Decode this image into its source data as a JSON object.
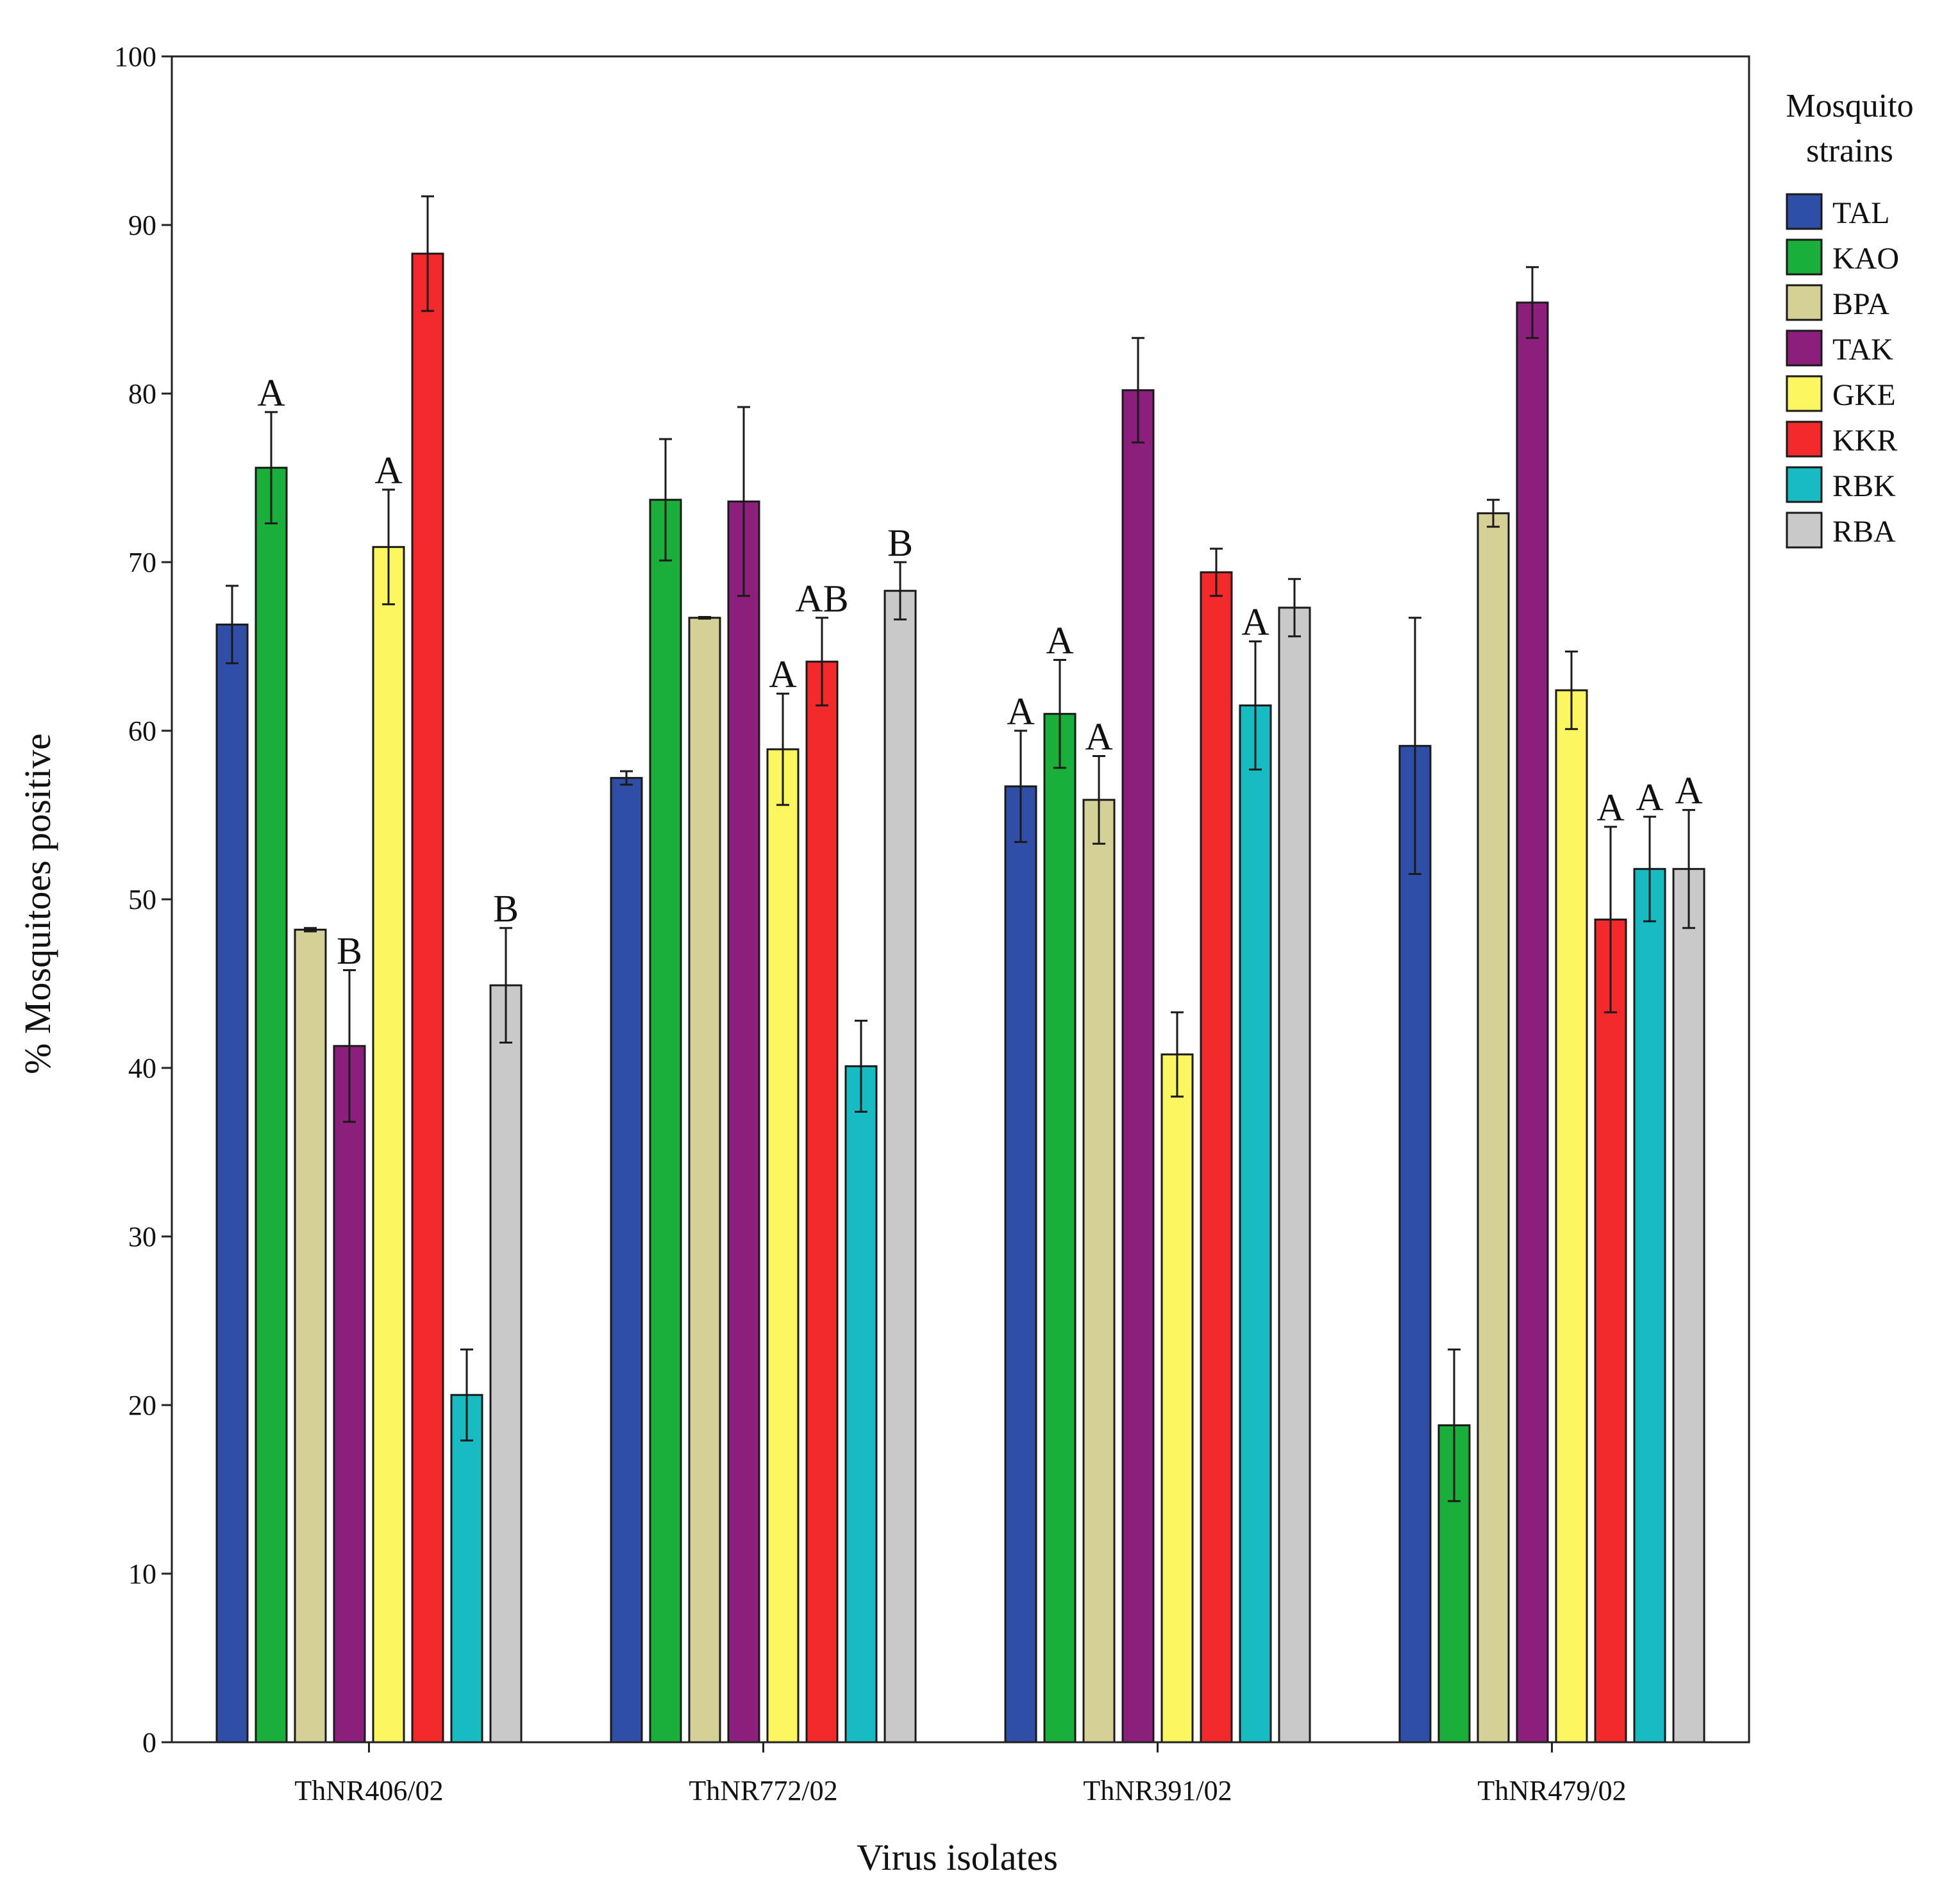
{
  "chart_data": {
    "type": "bar",
    "xlabel": "Virus isolates",
    "ylabel": "% Mosquitoes positive",
    "ylim": [
      0,
      100
    ],
    "yticks": [
      0,
      10,
      20,
      30,
      40,
      50,
      60,
      70,
      80,
      90,
      100
    ],
    "grid": false,
    "categories": [
      "ThNR406/02",
      "ThNR772/02",
      "ThNR391/02",
      "ThNR479/02"
    ],
    "legend": {
      "title": "Mosquito strains",
      "placement": "right"
    },
    "series": [
      {
        "name": "TAL",
        "color": "#2f4fa7",
        "values": [
          66.3,
          57.2,
          56.7,
          59.1
        ],
        "errors": [
          2.3,
          0.4,
          3.3,
          7.6
        ],
        "labels": [
          "",
          "",
          "A",
          ""
        ]
      },
      {
        "name": "KAO",
        "color": "#1aae3a",
        "values": [
          75.6,
          73.7,
          61.0,
          18.8
        ],
        "errors": [
          3.3,
          3.6,
          3.2,
          4.5
        ],
        "labels": [
          "A",
          "",
          "A",
          ""
        ]
      },
      {
        "name": "BPA",
        "color": "#d5d096",
        "values": [
          48.2,
          66.7,
          55.9,
          72.9
        ],
        "errors": [
          0.1,
          0.05,
          2.6,
          0.8
        ],
        "labels": [
          "",
          "",
          "A",
          ""
        ]
      },
      {
        "name": "TAK",
        "color": "#8c1f7c",
        "values": [
          41.3,
          73.6,
          80.2,
          85.4
        ],
        "errors": [
          4.5,
          5.6,
          3.1,
          2.1
        ],
        "labels": [
          "B",
          "",
          "",
          ""
        ]
      },
      {
        "name": "GKE",
        "color": "#fbf65f",
        "values": [
          70.9,
          58.9,
          40.8,
          62.4
        ],
        "errors": [
          3.4,
          3.3,
          2.5,
          2.3
        ],
        "labels": [
          "A",
          "A",
          "",
          ""
        ]
      },
      {
        "name": "KKR",
        "color": "#f3292b",
        "values": [
          88.3,
          64.1,
          69.4,
          48.8
        ],
        "errors": [
          3.4,
          2.6,
          1.4,
          5.5
        ],
        "labels": [
          "",
          "AB",
          "",
          "A"
        ]
      },
      {
        "name": "RBK",
        "color": "#17bcc2",
        "values": [
          20.6,
          40.1,
          61.5,
          51.8
        ],
        "errors": [
          2.7,
          2.7,
          3.8,
          3.1
        ],
        "labels": [
          "",
          "",
          "A",
          "A"
        ]
      },
      {
        "name": "RBA",
        "color": "#c9c9c9",
        "values": [
          44.9,
          68.3,
          67.3,
          51.8
        ],
        "errors": [
          3.4,
          1.7,
          1.7,
          3.5
        ],
        "labels": [
          "B",
          "B",
          "",
          "A"
        ]
      }
    ]
  }
}
